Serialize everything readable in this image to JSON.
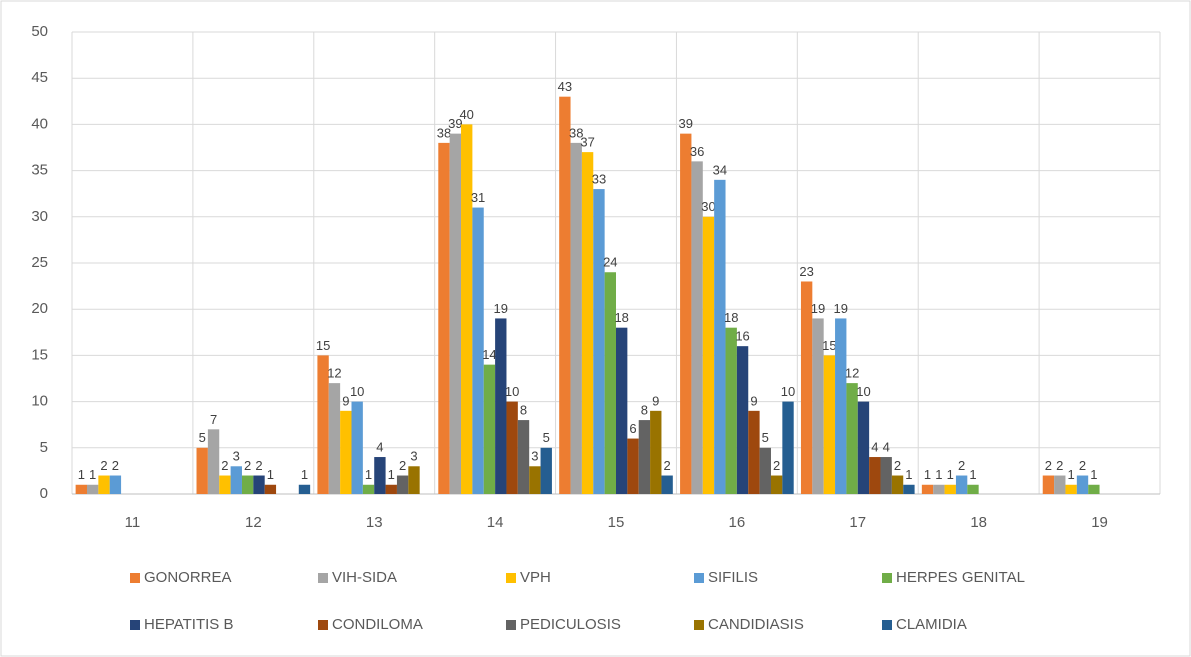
{
  "chart_data": {
    "type": "bar",
    "categories": [
      "11",
      "12",
      "13",
      "14",
      "15",
      "16",
      "17",
      "18",
      "19"
    ],
    "series": [
      {
        "name": "GONORREA",
        "color": "#ed7d31",
        "values": [
          1,
          5,
          15,
          38,
          43,
          39,
          23,
          1,
          2
        ]
      },
      {
        "name": "VIH-SIDA",
        "color": "#a5a5a5",
        "values": [
          1,
          7,
          12,
          39,
          38,
          36,
          19,
          1,
          2
        ]
      },
      {
        "name": "VPH",
        "color": "#ffc000",
        "values": [
          2,
          2,
          9,
          40,
          37,
          30,
          15,
          1,
          1
        ]
      },
      {
        "name": "SIFILIS",
        "color": "#5b9bd5",
        "values": [
          2,
          3,
          10,
          31,
          33,
          34,
          19,
          2,
          2
        ]
      },
      {
        "name": "HERPES GENITAL",
        "color": "#70ad47",
        "values": [
          null,
          2,
          1,
          14,
          24,
          18,
          12,
          1,
          1
        ]
      },
      {
        "name": "HEPATITIS B",
        "color": "#264478",
        "values": [
          null,
          2,
          4,
          19,
          18,
          16,
          10,
          null,
          null
        ]
      },
      {
        "name": "CONDILOMA",
        "color": "#9e480e",
        "values": [
          null,
          1,
          1,
          10,
          6,
          9,
          4,
          null,
          null
        ]
      },
      {
        "name": "PEDICULOSIS",
        "color": "#636363",
        "values": [
          null,
          null,
          2,
          8,
          8,
          5,
          4,
          null,
          null
        ]
      },
      {
        "name": "CANDIDIASIS",
        "color": "#997300",
        "values": [
          null,
          null,
          3,
          3,
          9,
          2,
          2,
          null,
          null
        ]
      },
      {
        "name": "CLAMIDIA",
        "color": "#255e91",
        "values": [
          null,
          1,
          null,
          5,
          2,
          10,
          1,
          null,
          null
        ]
      }
    ],
    "ylim": [
      0,
      50
    ],
    "yticks": [
      0,
      5,
      10,
      15,
      20,
      25,
      30,
      35,
      40,
      45,
      50
    ],
    "grid": true,
    "legend": "bottom"
  }
}
